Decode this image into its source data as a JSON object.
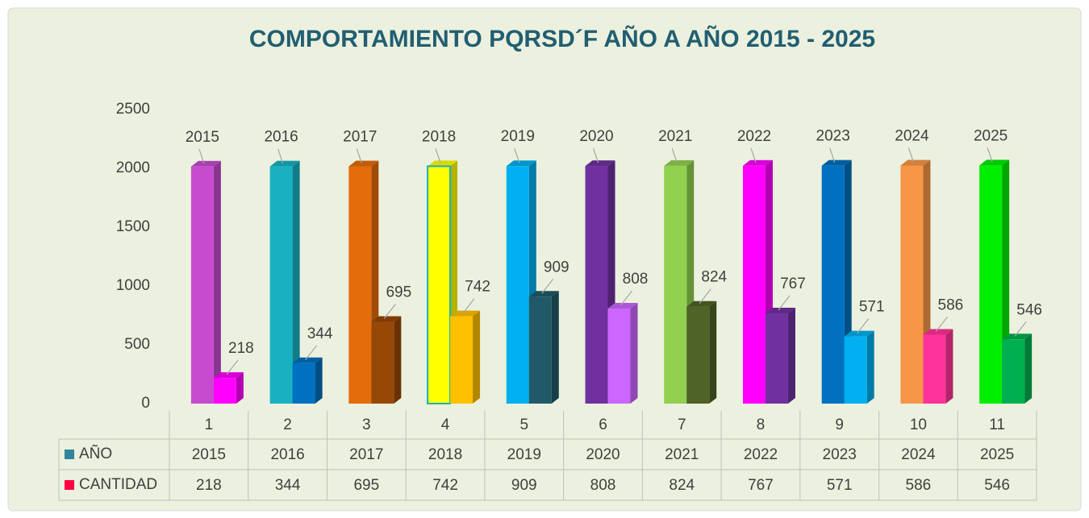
{
  "chart_data": {
    "type": "bar3d",
    "title": "COMPORTAMIENTO PQRSD´F AÑO A AÑO 2015 - 2025",
    "categories": [
      "1",
      "2",
      "3",
      "4",
      "5",
      "6",
      "7",
      "8",
      "9",
      "10",
      "11"
    ],
    "series": [
      {
        "name": "AÑO",
        "color": "#31849b",
        "values": [
          2015,
          2016,
          2017,
          2018,
          2019,
          2020,
          2021,
          2022,
          2023,
          2024,
          2025
        ],
        "colors": [
          "#c64bcf",
          "#17b1c1",
          "#e46c0a",
          "#ffff00",
          "#00b0f0",
          "#7030a0",
          "#92d050",
          "#ff00ff",
          "#0070c0",
          "#f79646",
          "#00ee00"
        ]
      },
      {
        "name": "CANTIDAD",
        "color": "#ff0040",
        "values": [
          218,
          344,
          695,
          742,
          909,
          808,
          824,
          767,
          571,
          586,
          546
        ],
        "colors": [
          "#ff00ff",
          "#0070c0",
          "#974706",
          "#ffc000",
          "#215968",
          "#cc66ff",
          "#4f6228",
          "#7030a0",
          "#00b0f0",
          "#ff3399",
          "#00b050"
        ]
      }
    ],
    "ylim": [
      0,
      2500
    ],
    "yticks": [
      0,
      500,
      1000,
      1500,
      2000,
      2500
    ],
    "grid": false
  }
}
